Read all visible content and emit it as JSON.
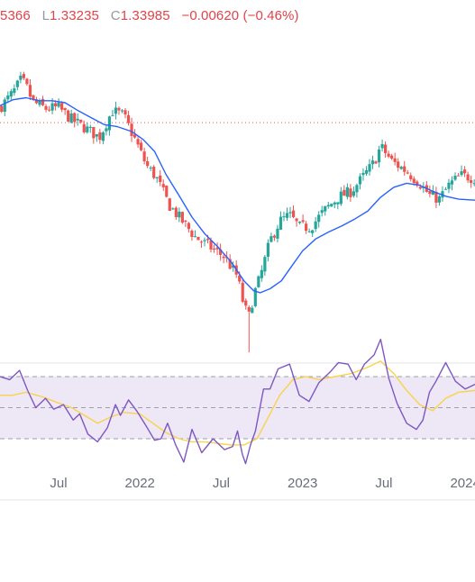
{
  "header": {
    "open_partial": "5366",
    "low_label": "L",
    "low": "1.33235",
    "close_label": "C",
    "close": "1.33985",
    "change": "−0.00620 (−0.46%)"
  },
  "chart_data": {
    "type": "candlestick",
    "ylim": [
      1.186,
      1.512
    ],
    "rsi_ylim": [
      0,
      100
    ],
    "rsi_bands": [
      70,
      30
    ],
    "reference_line": 1.425,
    "grid": false,
    "colors": {
      "up": "#26a69a",
      "down": "#ef5350",
      "ma": "#2962ff",
      "rsi": "#7e57c2",
      "rsi_ma": "#f9d34a",
      "rsi_band_fill": "#ede7f6",
      "reference": "#ef5350"
    },
    "x_ticks": [
      {
        "label": "Jul",
        "x": 2021.5
      },
      {
        "label": "2022",
        "x": 2022.0
      },
      {
        "label": "Jul",
        "x": 2022.5
      },
      {
        "label": "2023",
        "x": 2023.0
      },
      {
        "label": "Jul",
        "x": 2023.5
      },
      {
        "label": "2024",
        "x": 2024.0
      }
    ],
    "xlim": [
      2021.14,
      2024.06
    ],
    "close_path": [
      [
        2021.14,
        1.44
      ],
      [
        2021.22,
        1.455
      ],
      [
        2021.27,
        1.468
      ],
      [
        2021.3,
        1.462
      ],
      [
        2021.34,
        1.446
      ],
      [
        2021.42,
        1.439
      ],
      [
        2021.5,
        1.44
      ],
      [
        2021.58,
        1.428
      ],
      [
        2021.66,
        1.42
      ],
      [
        2021.75,
        1.41
      ],
      [
        2021.83,
        1.437
      ],
      [
        2021.9,
        1.432
      ],
      [
        2021.97,
        1.408
      ],
      [
        2022.04,
        1.382
      ],
      [
        2022.1,
        1.37
      ],
      [
        2022.18,
        1.342
      ],
      [
        2022.26,
        1.326
      ],
      [
        2022.34,
        1.31
      ],
      [
        2022.43,
        1.3
      ],
      [
        2022.52,
        1.29
      ],
      [
        2022.6,
        1.27
      ],
      [
        2022.64,
        1.24
      ],
      [
        2022.67,
        1.23
      ],
      [
        2022.7,
        1.252
      ],
      [
        2022.74,
        1.27
      ],
      [
        2022.8,
        1.306
      ],
      [
        2022.86,
        1.326
      ],
      [
        2022.92,
        1.332
      ],
      [
        2022.98,
        1.32
      ],
      [
        2023.05,
        1.32
      ],
      [
        2023.13,
        1.336
      ],
      [
        2023.22,
        1.35
      ],
      [
        2023.3,
        1.356
      ],
      [
        2023.37,
        1.37
      ],
      [
        2023.44,
        1.385
      ],
      [
        2023.48,
        1.401
      ],
      [
        2023.55,
        1.386
      ],
      [
        2023.64,
        1.376
      ],
      [
        2023.72,
        1.364
      ],
      [
        2023.78,
        1.352
      ],
      [
        2023.84,
        1.348
      ],
      [
        2023.9,
        1.362
      ],
      [
        2023.97,
        1.372
      ],
      [
        2024.06,
        1.369
      ]
    ],
    "ma_path": [
      [
        2021.14,
        1.442
      ],
      [
        2021.22,
        1.448
      ],
      [
        2021.3,
        1.45
      ],
      [
        2021.38,
        1.447
      ],
      [
        2021.46,
        1.447
      ],
      [
        2021.54,
        1.445
      ],
      [
        2021.62,
        1.437
      ],
      [
        2021.7,
        1.43
      ],
      [
        2021.78,
        1.423
      ],
      [
        2021.86,
        1.421
      ],
      [
        2021.95,
        1.416
      ],
      [
        2022.02,
        1.408
      ],
      [
        2022.09,
        1.396
      ],
      [
        2022.16,
        1.373
      ],
      [
        2022.24,
        1.352
      ],
      [
        2022.32,
        1.33
      ],
      [
        2022.4,
        1.313
      ],
      [
        2022.48,
        1.3
      ],
      [
        2022.56,
        1.285
      ],
      [
        2022.64,
        1.266
      ],
      [
        2022.7,
        1.256
      ],
      [
        2022.74,
        1.254
      ],
      [
        2022.8,
        1.258
      ],
      [
        2022.87,
        1.266
      ],
      [
        2022.93,
        1.28
      ],
      [
        2023.0,
        1.296
      ],
      [
        2023.08,
        1.308
      ],
      [
        2023.16,
        1.315
      ],
      [
        2023.24,
        1.321
      ],
      [
        2023.32,
        1.328
      ],
      [
        2023.4,
        1.336
      ],
      [
        2023.48,
        1.35
      ],
      [
        2023.56,
        1.36
      ],
      [
        2023.64,
        1.364
      ],
      [
        2023.72,
        1.362
      ],
      [
        2023.8,
        1.356
      ],
      [
        2023.88,
        1.351
      ],
      [
        2023.96,
        1.348
      ],
      [
        2024.06,
        1.347
      ]
    ],
    "rsi_path": [
      [
        2021.14,
        70
      ],
      [
        2021.2,
        68
      ],
      [
        2021.26,
        74
      ],
      [
        2021.31,
        61
      ],
      [
        2021.36,
        50
      ],
      [
        2021.42,
        56
      ],
      [
        2021.47,
        49
      ],
      [
        2021.53,
        52
      ],
      [
        2021.59,
        42
      ],
      [
        2021.63,
        46
      ],
      [
        2021.68,
        33
      ],
      [
        2021.74,
        28
      ],
      [
        2021.8,
        37
      ],
      [
        2021.85,
        52
      ],
      [
        2021.88,
        45
      ],
      [
        2021.93,
        55
      ],
      [
        2021.98,
        48
      ],
      [
        2022.04,
        38
      ],
      [
        2022.09,
        29
      ],
      [
        2022.13,
        30
      ],
      [
        2022.17,
        40
      ],
      [
        2022.22,
        26
      ],
      [
        2022.27,
        15
      ],
      [
        2022.32,
        36
      ],
      [
        2022.38,
        21
      ],
      [
        2022.45,
        30
      ],
      [
        2022.52,
        23
      ],
      [
        2022.57,
        25
      ],
      [
        2022.6,
        35
      ],
      [
        2022.63,
        20
      ],
      [
        2022.65,
        14
      ],
      [
        2022.68,
        26
      ],
      [
        2022.71,
        35
      ],
      [
        2022.76,
        62
      ],
      [
        2022.8,
        62
      ],
      [
        2022.85,
        75
      ],
      [
        2022.92,
        78
      ],
      [
        2022.98,
        58
      ],
      [
        2023.04,
        54
      ],
      [
        2023.1,
        66
      ],
      [
        2023.17,
        73
      ],
      [
        2023.22,
        79
      ],
      [
        2023.28,
        78
      ],
      [
        2023.33,
        68
      ],
      [
        2023.38,
        78
      ],
      [
        2023.44,
        84
      ],
      [
        2023.48,
        94
      ],
      [
        2023.53,
        69
      ],
      [
        2023.58,
        53
      ],
      [
        2023.64,
        40
      ],
      [
        2023.7,
        36
      ],
      [
        2023.74,
        42
      ],
      [
        2023.78,
        60
      ],
      [
        2023.82,
        67
      ],
      [
        2023.88,
        79
      ],
      [
        2023.94,
        67
      ],
      [
        2024.0,
        62
      ],
      [
        2024.06,
        65
      ]
    ],
    "rsi_ma_path": [
      [
        2021.14,
        58
      ],
      [
        2021.22,
        58
      ],
      [
        2021.3,
        60
      ],
      [
        2021.4,
        57
      ],
      [
        2021.5,
        53
      ],
      [
        2021.58,
        50
      ],
      [
        2021.66,
        45
      ],
      [
        2021.74,
        40
      ],
      [
        2021.82,
        44
      ],
      [
        2021.9,
        47
      ],
      [
        2022.0,
        46
      ],
      [
        2022.08,
        40
      ],
      [
        2022.16,
        34
      ],
      [
        2022.24,
        30
      ],
      [
        2022.32,
        28
      ],
      [
        2022.4,
        28
      ],
      [
        2022.48,
        27
      ],
      [
        2022.56,
        26
      ],
      [
        2022.64,
        26
      ],
      [
        2022.72,
        30
      ],
      [
        2022.78,
        42
      ],
      [
        2022.86,
        58
      ],
      [
        2022.94,
        68
      ],
      [
        2023.02,
        70
      ],
      [
        2023.1,
        68
      ],
      [
        2023.2,
        70
      ],
      [
        2023.3,
        72
      ],
      [
        2023.4,
        76
      ],
      [
        2023.48,
        80
      ],
      [
        2023.56,
        72
      ],
      [
        2023.64,
        61
      ],
      [
        2023.72,
        52
      ],
      [
        2023.8,
        48
      ],
      [
        2023.88,
        56
      ],
      [
        2023.96,
        60
      ],
      [
        2024.06,
        61
      ]
    ]
  }
}
